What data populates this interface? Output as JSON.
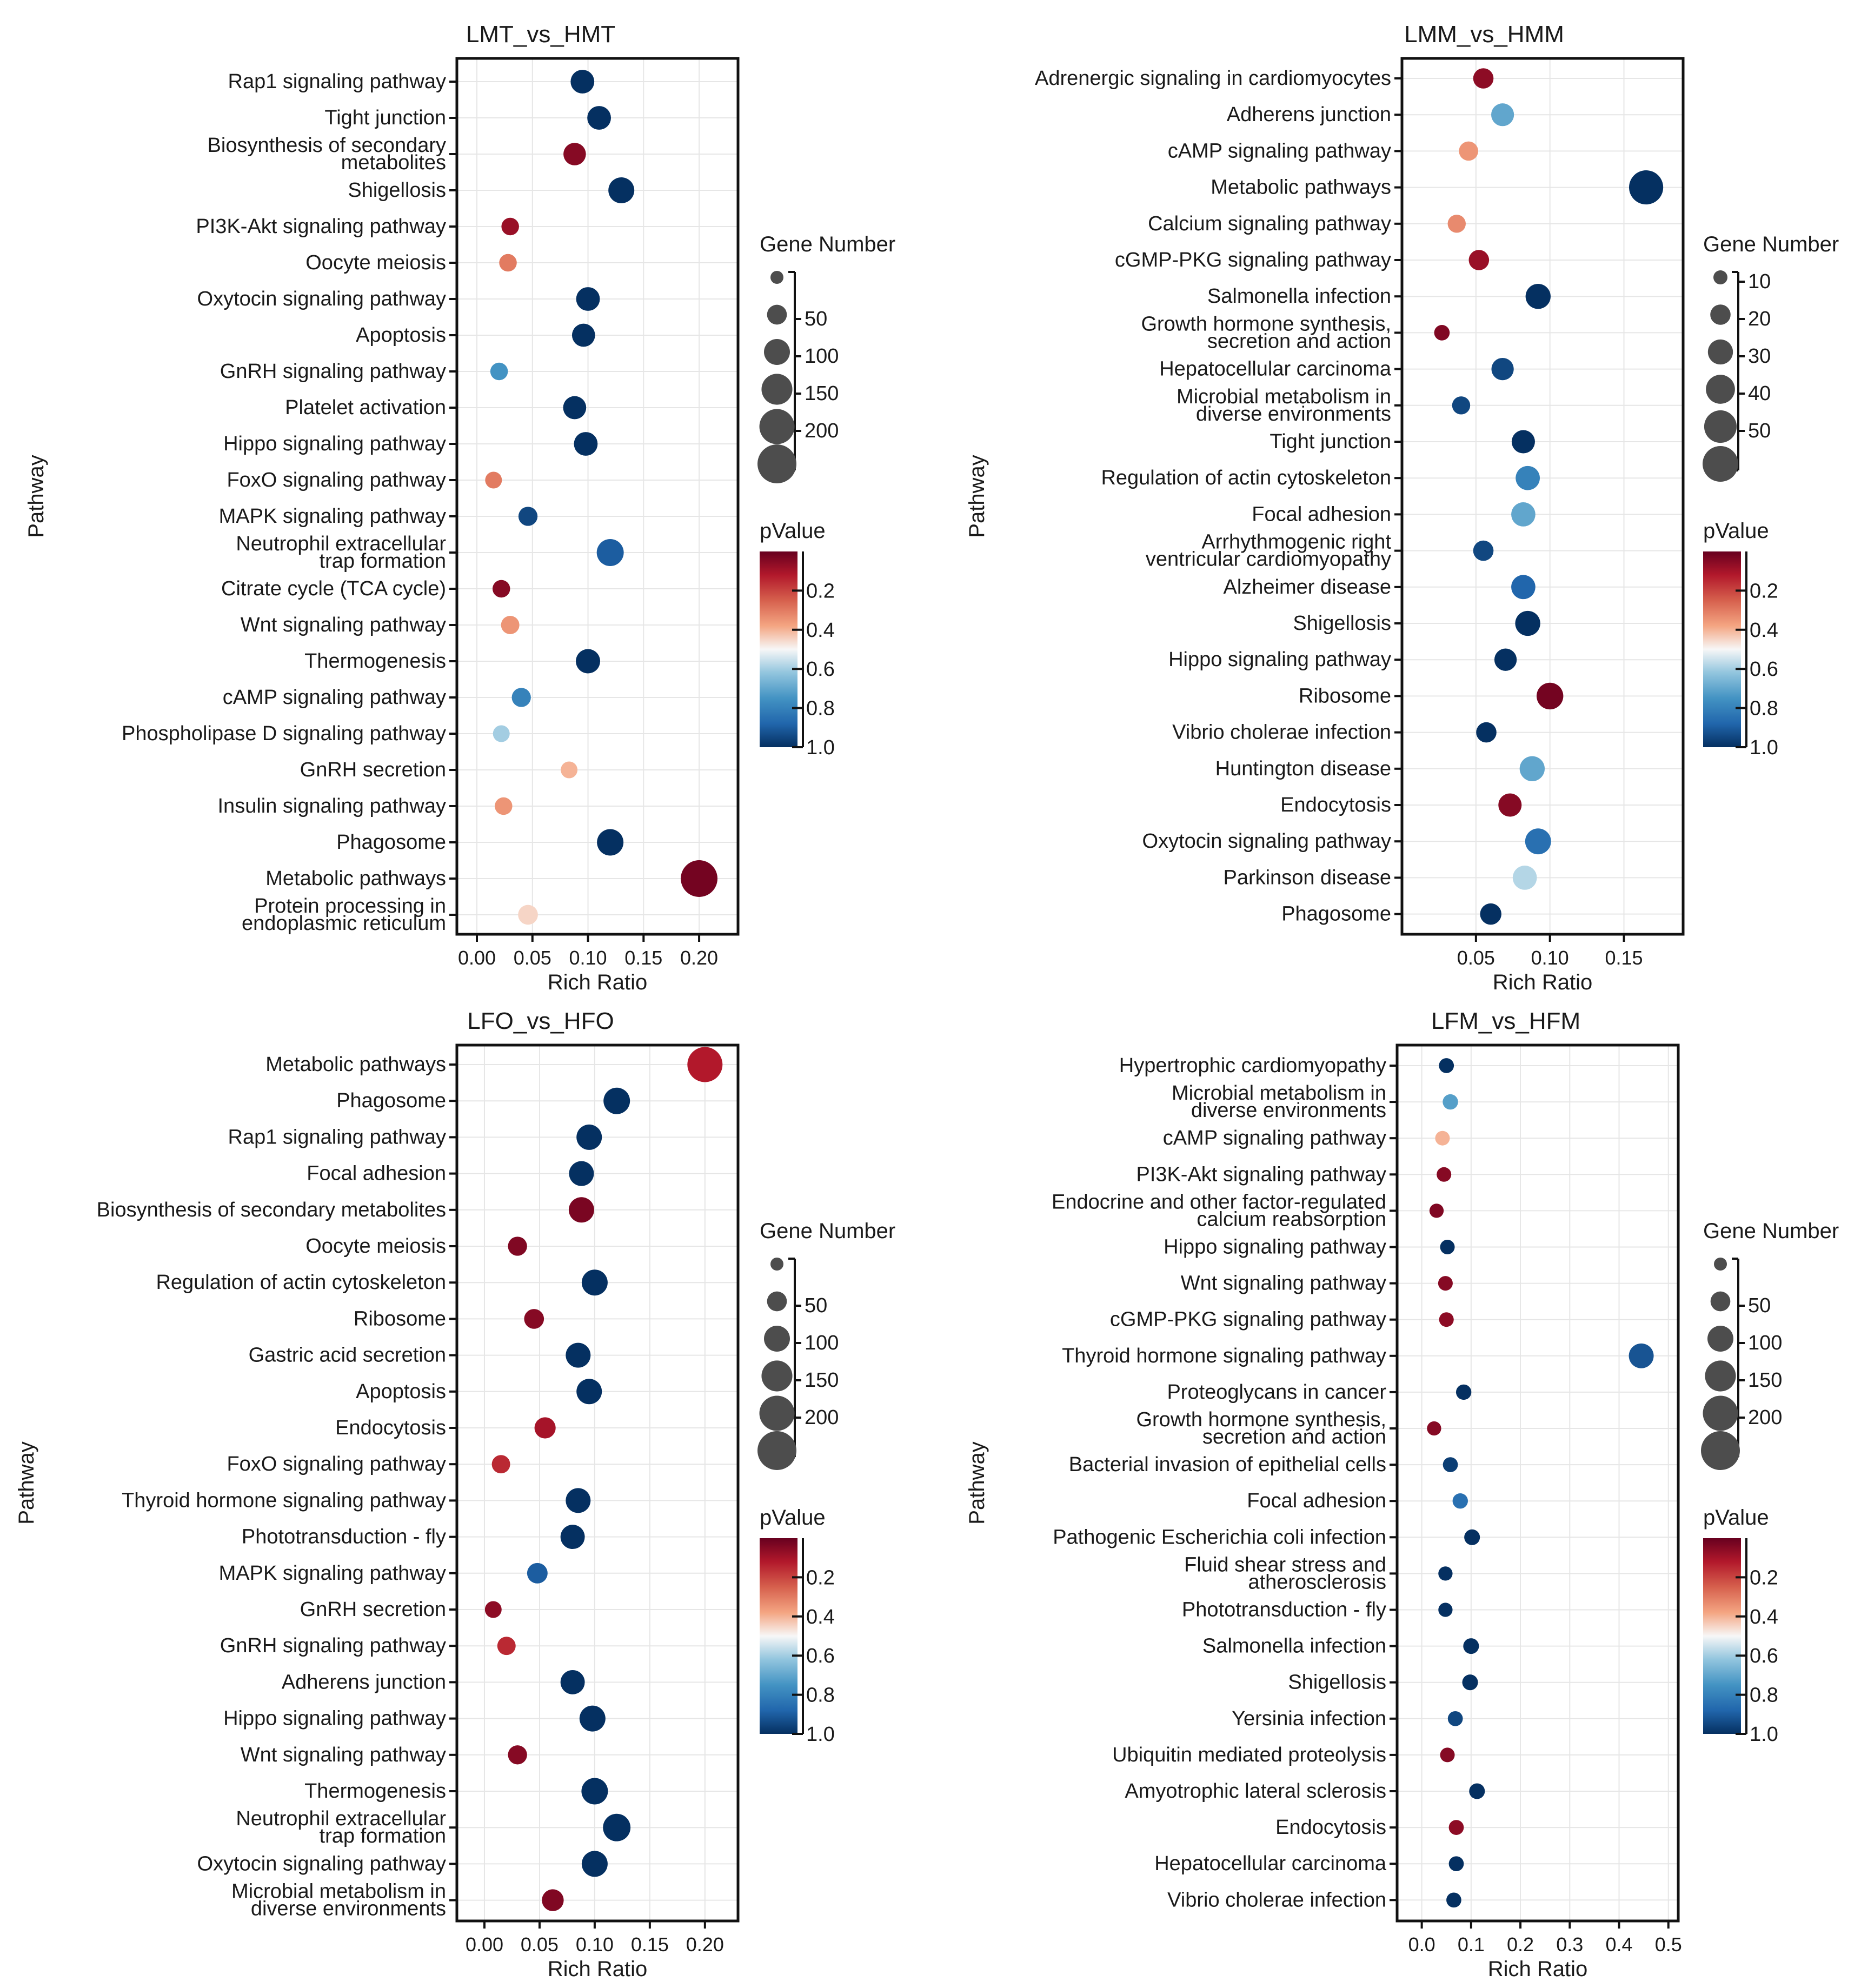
{
  "figure": {
    "pathway_axis_label": "Pathway",
    "rich_ratio_axis_label": "Rich Ratio",
    "gene_number_legend_title": "Gene Number",
    "pvalue_legend_title": "pValue",
    "pvalue_colorbar_ticks": [
      "0.2",
      "0.4",
      "0.6",
      "0.8",
      "1.0"
    ],
    "colors": {
      "pvalue_low": "#67001f",
      "pvalue_mid": "#f7f7f7",
      "pvalue_high": "#053061",
      "grid": "#e6e6e6",
      "frame": "#111111",
      "size_legend_dot": "#4d4d4d"
    }
  },
  "chart_data": [
    {
      "type": "scatter",
      "title": "LMT_vs_HMT",
      "xlabel": "Rich Ratio",
      "ylabel": "Pathway",
      "xlim": [
        -0.018,
        0.235
      ],
      "xticks": [
        0.0,
        0.05,
        0.1,
        0.15,
        0.2
      ],
      "xtick_labels": [
        "0.00",
        "0.05",
        "0.10",
        "0.15",
        "0.20"
      ],
      "size_legend": {
        "values": [
          10,
          50,
          100,
          150,
          200,
          250
        ],
        "labels": [
          "",
          "50",
          "100",
          "150",
          "200",
          ""
        ]
      },
      "categories": [
        "Rap1 signaling pathway",
        "Tight junction",
        "Biosynthesis of secondary|metabolites",
        "Shigellosis",
        "PI3K-Akt signaling pathway",
        "Oocyte meiosis",
        "Oxytocin signaling pathway",
        "Apoptosis",
        "GnRH signaling pathway",
        "Platelet activation",
        "Hippo signaling pathway",
        "FoxO signaling pathway",
        "MAPK signaling pathway",
        "Neutrophil extracellular|trap formation",
        "Citrate          cycle (TCA cycle)",
        "Wnt signaling pathway",
        "Thermogenesis",
        "cAMP signaling pathway",
        "Phospholipase D signaling pathway",
        "GnRH secretion",
        "Insulin signaling pathway",
        "Phagosome",
        "Metabolic pathways",
        "Protein processing in|endoplasmic reticulum"
      ],
      "rich_ratio": [
        0.095,
        0.11,
        0.088,
        0.13,
        0.03,
        0.028,
        0.1,
        0.096,
        0.02,
        0.088,
        0.098,
        0.015,
        0.046,
        0.12,
        0.022,
        0.03,
        0.1,
        0.04,
        0.022,
        0.083,
        0.024,
        0.12,
        0.2,
        0.046
      ],
      "gene_number": [
        80,
        80,
        70,
        100,
        35,
        35,
        80,
        75,
        35,
        75,
        80,
        30,
        45,
        110,
        35,
        40,
        85,
        45,
        30,
        30,
        35,
        105,
        220,
        50
      ],
      "pvalue": [
        1.0,
        1.0,
        0.05,
        1.0,
        0.08,
        0.3,
        1.0,
        1.0,
        0.75,
        1.0,
        1.0,
        0.3,
        0.95,
        0.9,
        0.05,
        0.35,
        1.0,
        0.8,
        0.6,
        0.4,
        0.35,
        1.0,
        0.02,
        0.45
      ]
    },
    {
      "type": "scatter",
      "title": "LMM_vs_HMM",
      "xlabel": "Rich Ratio",
      "ylabel": "Pathway",
      "xlim": [
        0.0,
        0.19
      ],
      "xticks": [
        0.05,
        0.1,
        0.15
      ],
      "xtick_labels": [
        "0.05",
        "0.10",
        "0.15"
      ],
      "size_legend": {
        "values": [
          10,
          20,
          30,
          40,
          50,
          60
        ],
        "labels": [
          "10",
          "20",
          "30",
          "40",
          "50",
          ""
        ]
      },
      "categories": [
        "Adrenergic signaling in cardiomyocytes",
        "Adherens junction",
        "cAMP signaling pathway",
        "Metabolic pathways",
        "Calcium signaling pathway",
        "cGMP-PKG signaling pathway",
        "Salmonella infection",
        "Growth hormone synthesis,|secretion and action",
        "Hepatocellular carcinoma",
        "Microbial metabolism in|diverse environments",
        "Tight junction",
        "Regulation of actin cytoskeleton",
        "Focal adhesion",
        "Arrhythmogenic right|ventricular cardiomyopathy",
        "Alzheimer disease",
        "Shigellosis",
        "Hippo signaling pathway",
        "Ribosome",
        "Vibrio cholerae infection",
        "Huntington disease",
        "Endocytosis",
        "Oxytocin signaling pathway",
        "Parkinson disease",
        "Phagosome"
      ],
      "rich_ratio": [
        0.055,
        0.068,
        0.045,
        0.165,
        0.037,
        0.052,
        0.092,
        0.027,
        0.068,
        0.04,
        0.082,
        0.085,
        0.082,
        0.055,
        0.082,
        0.085,
        0.07,
        0.1,
        0.057,
        0.088,
        0.073,
        0.092,
        0.083,
        0.06
      ],
      "gene_number": [
        20,
        25,
        18,
        55,
        16,
        20,
        30,
        12,
        24,
        16,
        26,
        28,
        28,
        20,
        28,
        30,
        24,
        34,
        20,
        30,
        26,
        32,
        28,
        22
      ],
      "pvalue": [
        0.06,
        0.7,
        0.35,
        1.0,
        0.33,
        0.08,
        1.0,
        0.04,
        0.95,
        0.95,
        1.0,
        0.8,
        0.7,
        0.95,
        0.88,
        1.0,
        1.0,
        0.02,
        1.0,
        0.7,
        0.05,
        0.85,
        0.58,
        1.0
      ]
    },
    {
      "type": "scatter",
      "title": "LFO_vs_HFO",
      "xlabel": "Rich Ratio",
      "ylabel": "Pathway",
      "xlim": [
        -0.025,
        0.23
      ],
      "xticks": [
        0.0,
        0.05,
        0.1,
        0.15,
        0.2
      ],
      "xtick_labels": [
        "0.00",
        "0.05",
        "0.10",
        "0.15",
        "0.20"
      ],
      "size_legend": {
        "values": [
          10,
          50,
          100,
          150,
          200,
          250
        ],
        "labels": [
          "",
          "50",
          "100",
          "150",
          "200",
          ""
        ]
      },
      "categories": [
        "Metabolic pathways",
        "Phagosome",
        "Rap1 signaling pathway",
        "Focal  adhesion",
        "Biosynthesis of secondary metabolites",
        "Oocyte meiosis",
        "Regulation of actin cytoskeleton",
        "Ribosome",
        "Gastric acid secretion",
        "Apoptosis",
        "Endocytosis",
        "FoxO signaling pathway",
        "Thyroid hormone signaling pathway",
        "Phototransduction - fly",
        "MAPK signaling pathway",
        "GnRH secretion",
        "GnRH signaling pathway",
        "Adherens junction",
        "Hippo signaling pathway",
        "Wnt signaling pathway",
        "Thermogenesis",
        "Neutrophil extracellular|trap formation",
        "Oxytocin signaling pathway",
        "Microbial metabolism in|diverse environments"
      ],
      "rich_ratio": [
        0.2,
        0.12,
        0.095,
        0.088,
        0.088,
        0.03,
        0.1,
        0.045,
        0.085,
        0.095,
        0.055,
        0.015,
        0.085,
        0.08,
        0.048,
        0.008,
        0.02,
        0.08,
        0.098,
        0.03,
        0.1,
        0.12,
        0.1,
        0.062
      ],
      "gene_number": [
        200,
        105,
        95,
        90,
        95,
        45,
        100,
        50,
        90,
        95,
        60,
        40,
        90,
        85,
        55,
        30,
        40,
        85,
        100,
        45,
        105,
        115,
        100,
        65
      ],
      "pvalue": [
        0.12,
        1.0,
        1.0,
        1.0,
        0.03,
        0.04,
        1.0,
        0.05,
        1.0,
        1.0,
        0.1,
        0.15,
        1.0,
        1.0,
        0.9,
        0.06,
        0.15,
        1.0,
        1.0,
        0.05,
        1.0,
        1.0,
        1.0,
        0.04
      ]
    },
    {
      "type": "scatter",
      "title": "LFM_vs_HFM",
      "xlabel": "Rich Ratio",
      "ylabel": "Pathway",
      "xlim": [
        -0.05,
        0.52
      ],
      "xticks": [
        0.0,
        0.1,
        0.2,
        0.3,
        0.4,
        0.5
      ],
      "xtick_labels": [
        "0.0",
        "0.1",
        "0.2",
        "0.3",
        "0.4",
        "0.5"
      ],
      "size_legend": {
        "values": [
          10,
          50,
          100,
          150,
          200,
          250
        ],
        "labels": [
          "",
          "50",
          "100",
          "150",
          "200",
          ""
        ]
      },
      "categories": [
        "Hypertrophic cardiomyopathy",
        "Microbial metabolism in|diverse environments",
        "cAMP signaling pathway",
        "PI3K-Akt signaling pathway",
        "Endocrine and other factor-regulated|calcium reabsorption",
        "Hippo signaling pathway",
        "Wnt signaling pathway",
        "cGMP-PKG signaling pathway",
        "Thyroid hormone signaling pathway",
        "Proteoglycans in cancer",
        "Growth hormone synthesis,|secretion and action",
        "Bacterial invasion of epithelial cells",
        "Focal adhesion",
        "Pathogenic Escherichia coli infection",
        "Fluid shear stress and|atherosclerosis",
        "Phototransduction - fly",
        "Salmonella infection",
        "Shigellosis",
        "Yersinia infection",
        "Ubiquitin mediated proteolysis",
        "Amyotrophic lateral sclerosis",
        "Endocytosis",
        "Hepatocellular carcinoma",
        "Vibrio cholerae infection"
      ],
      "rich_ratio": [
        0.05,
        0.058,
        0.042,
        0.045,
        0.03,
        0.052,
        0.048,
        0.05,
        0.445,
        0.085,
        0.025,
        0.058,
        0.078,
        0.102,
        0.048,
        0.048,
        0.1,
        0.098,
        0.068,
        0.052,
        0.112,
        0.07,
        0.07,
        0.065
      ],
      "gene_number": [
        20,
        22,
        18,
        18,
        16,
        18,
        18,
        18,
        90,
        22,
        16,
        20,
        22,
        24,
        16,
        16,
        24,
        24,
        20,
        18,
        24,
        20,
        20,
        20
      ],
      "pvalue": [
        1.0,
        0.72,
        0.4,
        0.05,
        0.04,
        1.0,
        0.05,
        0.06,
        0.92,
        1.0,
        0.05,
        0.97,
        0.85,
        1.0,
        1.0,
        1.0,
        1.0,
        1.0,
        0.95,
        0.05,
        1.0,
        0.06,
        1.0,
        1.0
      ]
    }
  ]
}
